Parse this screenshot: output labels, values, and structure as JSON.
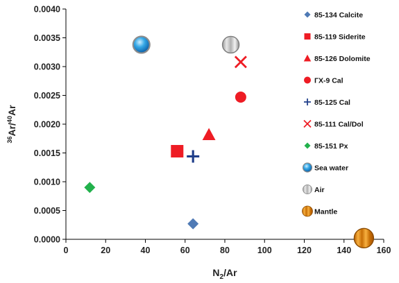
{
  "chart_data": {
    "type": "scatter",
    "xlabel": "N2/Ar",
    "ylabel": "36Ar/40Ar",
    "xlim": [
      0,
      160
    ],
    "ylim": [
      0,
      0.004
    ],
    "x_ticks": [
      "0",
      "20",
      "40",
      "60",
      "80",
      "100",
      "120",
      "140",
      "160"
    ],
    "y_ticks": [
      "0.0000",
      "0.0005",
      "0.0010",
      "0.0015",
      "0.0020",
      "0.0025",
      "0.0030",
      "0.0035",
      "0.0040"
    ],
    "grid": false,
    "legend_position": "right",
    "series": [
      {
        "name": "85-134 Calcite",
        "marker": "diamond",
        "color": "#4f7ab5",
        "x": 64,
        "y": 0.00027
      },
      {
        "name": "85-119 Siderite",
        "marker": "square",
        "color": "#ee1c24",
        "x": 56,
        "y": 0.00153
      },
      {
        "name": "85-126 Dolomite",
        "marker": "triangle",
        "color": "#ee1c24",
        "x": 72,
        "y": 0.00182
      },
      {
        "name": "ГX-9 Cal",
        "marker": "circle",
        "color": "#ee1c24",
        "x": 88,
        "y": 0.00247
      },
      {
        "name": "85-125 Cal",
        "marker": "plus",
        "color": "#1f3e8a",
        "x": 64,
        "y": 0.00144
      },
      {
        "name": "85-111 Cal/Dol",
        "marker": "x",
        "color": "#ee1c24",
        "x": 88,
        "y": 0.00308
      },
      {
        "name": "85-151 Px",
        "marker": "diamond",
        "color": "#22b14c",
        "x": 12,
        "y": 0.0009
      },
      {
        "name": "Sea water",
        "marker": "sphere-blue",
        "color": "#2aa3e0",
        "x": 38,
        "y": 0.00338
      },
      {
        "name": "Air",
        "marker": "sphere-grey",
        "color": "#c8c8c8",
        "x": 83,
        "y": 0.00338
      },
      {
        "name": "Mantle",
        "marker": "sphere-orange",
        "color": "#e08a10",
        "x": 150,
        "y": 2e-05
      }
    ]
  }
}
